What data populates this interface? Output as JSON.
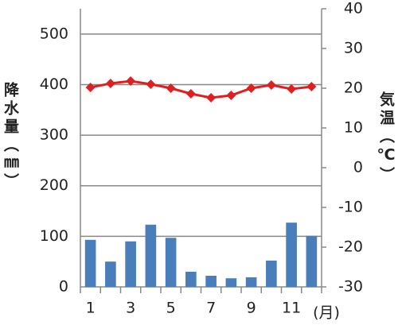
{
  "chart_data": {
    "type": "bar-line",
    "y_label": "降水量（㎜）",
    "y2_label": "気温（℃）",
    "x_unit": "(月)",
    "categories": [
      "1",
      null,
      "3",
      null,
      "5",
      null,
      "7",
      null,
      "9",
      null,
      "11",
      null
    ],
    "series": [
      {
        "type": "bar",
        "color": "#4a7ebb",
        "values": [
          93,
          50,
          90,
          123,
          97,
          30,
          22,
          17,
          19,
          52,
          127,
          101
        ]
      },
      {
        "type": "line",
        "axis": "y2",
        "color": "#e02020",
        "values": [
          20.2,
          21.2,
          21.8,
          21,
          20,
          18.6,
          17.6,
          18.2,
          20,
          20.8,
          19.8,
          20.4
        ]
      }
    ],
    "ylim": [
      0,
      550
    ],
    "yticks": [
      0,
      100,
      200,
      300,
      400,
      500
    ],
    "y2lim": [
      -30,
      40
    ],
    "y2ticks": [
      -30,
      -20,
      -10,
      0,
      10,
      20,
      30,
      40
    ],
    "grid": true
  }
}
